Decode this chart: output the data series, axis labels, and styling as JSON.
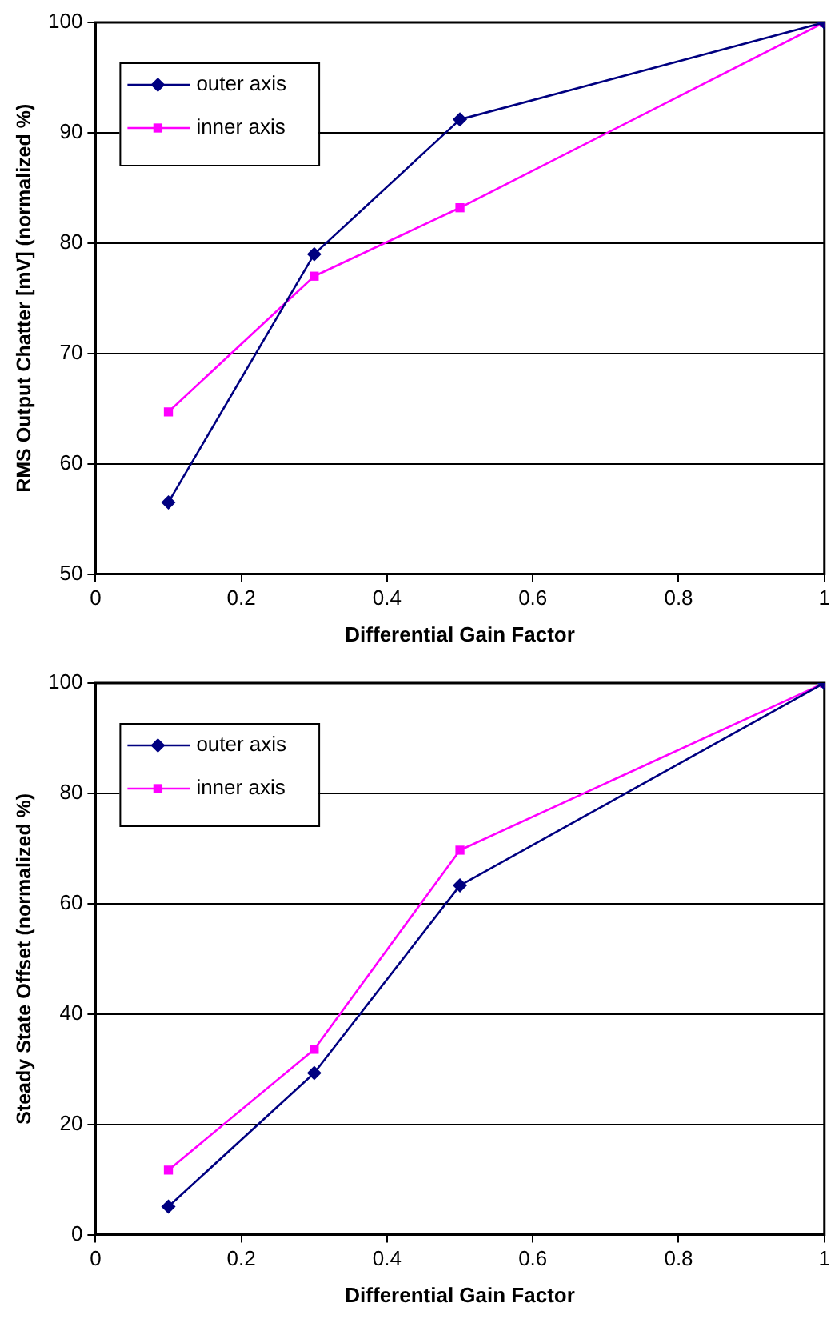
{
  "chart_data": [
    {
      "type": "line",
      "xlabel": "Differential Gain Factor",
      "ylabel": "RMS Output Chatter [mV] (normalized %)",
      "x": [
        0.1,
        0.3,
        0.5,
        1
      ],
      "xlim": [
        0,
        1
      ],
      "xticks": [
        0,
        0.2,
        0.4,
        0.6,
        0.8,
        1
      ],
      "ylim": [
        50,
        100
      ],
      "yticks": [
        50,
        60,
        70,
        80,
        90,
        100
      ],
      "grid": "y",
      "legend": "top left",
      "series": [
        {
          "name": "outer axis",
          "color": "#000080",
          "marker": "diamond",
          "values": [
            56.5,
            79.0,
            91.2,
            100
          ]
        },
        {
          "name": "inner axis",
          "color": "#ff00ff",
          "marker": "square",
          "values": [
            64.7,
            77.0,
            83.2,
            100
          ]
        }
      ]
    },
    {
      "type": "line",
      "xlabel": "Differential Gain Factor",
      "ylabel": "Steady State Offset (normalized %)",
      "x": [
        0.1,
        0.3,
        0.5,
        1
      ],
      "xlim": [
        0,
        1
      ],
      "xticks": [
        0,
        0.2,
        0.4,
        0.6,
        0.8,
        1
      ],
      "ylim": [
        0,
        100
      ],
      "yticks": [
        0,
        20,
        40,
        60,
        80,
        100
      ],
      "grid": "y",
      "legend": "top left",
      "series": [
        {
          "name": "outer axis",
          "color": "#000080",
          "marker": "diamond",
          "values": [
            5.1,
            29.3,
            63.3,
            100
          ]
        },
        {
          "name": "inner axis",
          "color": "#ff00ff",
          "marker": "square",
          "values": [
            11.7,
            33.6,
            69.7,
            100
          ]
        }
      ]
    }
  ]
}
